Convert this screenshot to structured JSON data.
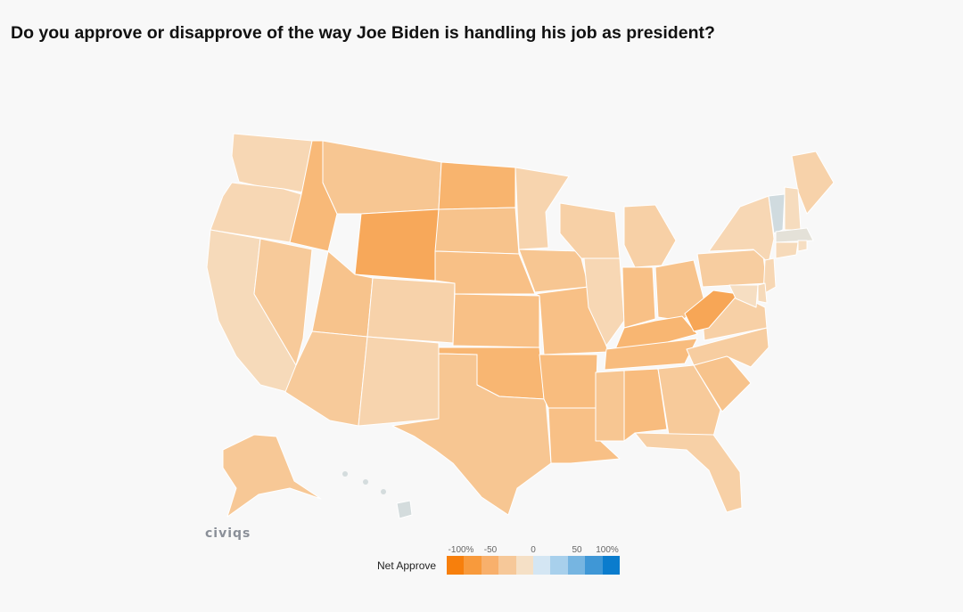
{
  "title": "Do you approve or disapprove of the way Joe Biden is handling his job as president?",
  "logo_text": "civiqs",
  "legend": {
    "label": "Net Approve",
    "ticks": [
      "-100%",
      "-50",
      "0",
      "50",
      "100%"
    ],
    "colors": [
      "#f77f0c",
      "#f89a3c",
      "#f8b06c",
      "#f6c899",
      "#f5e0c6",
      "#d4e6f3",
      "#a8d0ec",
      "#76b5e1",
      "#3f97d6",
      "#0a7ccd"
    ]
  },
  "chart_data": {
    "type": "choropleth",
    "metric": "Net Approve",
    "scale": [
      -100,
      100
    ],
    "states": {
      "WA": -15,
      "OR": -15,
      "CA": -12,
      "NV": -28,
      "ID": -45,
      "MT": -32,
      "WY": -60,
      "UT": -35,
      "AZ": -28,
      "CO": -20,
      "NM": -18,
      "ND": -50,
      "SD": -35,
      "NE": -38,
      "KS": -38,
      "OK": -48,
      "TX": -32,
      "MN": -18,
      "IA": -32,
      "MO": -38,
      "AR": -42,
      "LA": -38,
      "WI": -22,
      "IL": -15,
      "MI": -22,
      "IN": -38,
      "OH": -35,
      "KY": -48,
      "TN": -42,
      "MS": -32,
      "AL": -42,
      "GA": -28,
      "FL": -22,
      "SC": -35,
      "NC": -25,
      "VA": -22,
      "WV": -62,
      "PA": -25,
      "NY": -15,
      "ME": -20,
      "VT": 25,
      "NH": -10,
      "MA": 12,
      "RI": -8,
      "CT": -12,
      "NJ": -15,
      "DE": -12,
      "MD": -8,
      "AK": -30,
      "HI": 22
    }
  }
}
